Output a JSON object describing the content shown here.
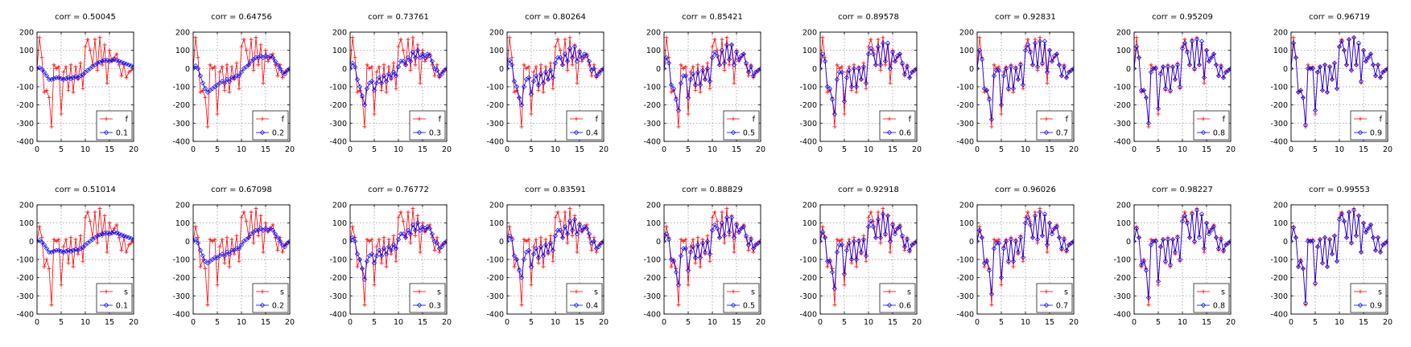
{
  "chart_data": {
    "type": "line",
    "layout": {
      "rows": 2,
      "cols": 9
    },
    "xlim": [
      0,
      20
    ],
    "ylim": [
      -400,
      200
    ],
    "xticks": [
      0,
      5,
      10,
      15,
      20
    ],
    "yticks": [
      -400,
      -300,
      -200,
      -100,
      0,
      100,
      200
    ],
    "grid": "dotted",
    "legend_location": "bottom-right",
    "colors": {
      "base_series": "#ff0000",
      "smoothed_series": "#0000ff"
    },
    "markers": {
      "base_series": "plus",
      "smoothed_series": "diamond"
    },
    "rows": [
      {
        "base_label": "f",
        "base_series": {
          "x": [
            0,
            0.5,
            1,
            1.5,
            2,
            2.5,
            3,
            3.5,
            4,
            4.5,
            5,
            5.5,
            6,
            6.5,
            7,
            7.5,
            8,
            8.5,
            9,
            9.5,
            10,
            10.5,
            11,
            11.5,
            12,
            12.5,
            13,
            13.5,
            14,
            14.5,
            15,
            15.5,
            16,
            16.5,
            17,
            17.5,
            18,
            18.5,
            19,
            19.5,
            20
          ],
          "y": [
            0,
            170,
            60,
            -130,
            -120,
            -160,
            -320,
            20,
            0,
            10,
            -250,
            -20,
            10,
            -120,
            20,
            -130,
            10,
            -60,
            30,
            -110,
            120,
            160,
            100,
            20,
            160,
            -10,
            170,
            20,
            130,
            -80,
            100,
            40,
            60,
            80,
            20,
            -40,
            20,
            -50,
            -20,
            -10,
            0
          ]
        },
        "panels": [
          {
            "title": "corr = 0.50045",
            "label": "0.1",
            "y": [
              0,
              5,
              -5,
              -20,
              -40,
              -60,
              -60,
              -55,
              -50,
              -50,
              -55,
              -60,
              -55,
              -50,
              -55,
              -50,
              -45,
              -50,
              -40,
              -35,
              -20,
              -10,
              0,
              10,
              20,
              30,
              35,
              40,
              45,
              45,
              40,
              45,
              50,
              45,
              40,
              35,
              30,
              25,
              20,
              15,
              10
            ]
          },
          {
            "title": "corr = 0.64756",
            "label": "0.2",
            "y": [
              0,
              15,
              0,
              -40,
              -80,
              -110,
              -130,
              -120,
              -110,
              -100,
              -90,
              -80,
              -70,
              -80,
              -60,
              -70,
              -50,
              -50,
              -40,
              -40,
              -20,
              0,
              10,
              20,
              40,
              50,
              60,
              60,
              70,
              60,
              70,
              60,
              70,
              60,
              40,
              20,
              0,
              -20,
              -30,
              -10,
              0
            ]
          },
          {
            "title": "corr = 0.73761",
            "label": "0.3",
            "y": [
              0,
              30,
              10,
              -60,
              -100,
              -150,
              -200,
              -110,
              -80,
              -70,
              -120,
              -80,
              -50,
              -80,
              -40,
              -70,
              -30,
              -50,
              -20,
              -40,
              10,
              40,
              40,
              20,
              60,
              40,
              90,
              60,
              100,
              60,
              80,
              60,
              80,
              70,
              40,
              0,
              -10,
              -40,
              -30,
              -10,
              0
            ]
          },
          {
            "title": "corr = 0.80264",
            "label": "0.4",
            "y": [
              0,
              45,
              20,
              -70,
              -100,
              -160,
              -200,
              -100,
              -60,
              -50,
              -140,
              -70,
              -40,
              -90,
              -30,
              -80,
              -20,
              -60,
              -10,
              -50,
              30,
              60,
              60,
              20,
              80,
              40,
              110,
              60,
              120,
              40,
              90,
              60,
              80,
              70,
              40,
              -10,
              0,
              -40,
              -30,
              -10,
              0
            ]
          },
          {
            "title": "corr = 0.85421",
            "label": "0.5",
            "y": [
              0,
              60,
              30,
              -90,
              -110,
              -170,
              -230,
              -80,
              -40,
              -40,
              -160,
              -60,
              -30,
              -90,
              -20,
              -90,
              -10,
              -60,
              0,
              -70,
              60,
              90,
              70,
              20,
              100,
              30,
              130,
              50,
              130,
              20,
              90,
              50,
              70,
              80,
              30,
              -20,
              10,
              -40,
              -20,
              -10,
              0
            ]
          },
          {
            "title": "corr = 0.89578",
            "label": "0.6",
            "y": [
              0,
              80,
              40,
              -100,
              -110,
              -170,
              -250,
              -60,
              -20,
              -20,
              -180,
              -50,
              -10,
              -100,
              0,
              -100,
              0,
              -60,
              10,
              -80,
              80,
              110,
              80,
              20,
              120,
              20,
              140,
              40,
              140,
              0,
              90,
              40,
              70,
              80,
              30,
              -30,
              10,
              -50,
              -20,
              -10,
              0
            ]
          },
          {
            "title": "corr = 0.92831",
            "label": "0.7",
            "y": [
              0,
              100,
              50,
              -110,
              -120,
              -170,
              -280,
              -40,
              -10,
              -10,
              -200,
              -40,
              0,
              -110,
              10,
              -110,
              0,
              -60,
              20,
              -90,
              100,
              130,
              90,
              20,
              140,
              10,
              150,
              30,
              150,
              -20,
              100,
              40,
              70,
              80,
              20,
              -40,
              10,
              -50,
              -20,
              -10,
              0
            ]
          },
          {
            "title": "corr = 0.95209",
            "label": "0.8",
            "y": [
              0,
              120,
              60,
              -120,
              -120,
              -160,
              -300,
              -20,
              0,
              0,
              -220,
              -30,
              10,
              -110,
              10,
              -120,
              10,
              -60,
              20,
              -100,
              110,
              140,
              90,
              20,
              150,
              0,
              160,
              20,
              150,
              -50,
              100,
              40,
              60,
              80,
              20,
              -40,
              10,
              -50,
              -20,
              -10,
              0
            ]
          },
          {
            "title": "corr = 0.96719",
            "label": "0.9",
            "y": [
              0,
              140,
              60,
              -130,
              -120,
              -160,
              -310,
              0,
              0,
              0,
              -230,
              -20,
              10,
              -120,
              20,
              -130,
              10,
              -60,
              30,
              -110,
              120,
              150,
              100,
              20,
              160,
              -10,
              170,
              20,
              140,
              -70,
              100,
              40,
              60,
              80,
              20,
              -40,
              20,
              -50,
              -20,
              -10,
              0
            ]
          }
        ]
      },
      {
        "base_label": "s",
        "base_series": {
          "x": [
            0,
            0.5,
            1,
            1.5,
            2,
            2.5,
            3,
            3.5,
            4,
            4.5,
            5,
            5.5,
            6,
            6.5,
            7,
            7.5,
            8,
            8.5,
            9,
            9.5,
            10,
            10.5,
            11,
            11.5,
            12,
            12.5,
            13,
            13.5,
            14,
            14.5,
            15,
            15.5,
            16,
            16.5,
            17,
            17.5,
            18,
            18.5,
            19,
            19.5,
            20
          ],
          "y": [
            0,
            80,
            20,
            -140,
            -100,
            -150,
            -350,
            10,
            0,
            10,
            -240,
            -30,
            10,
            -120,
            20,
            -140,
            10,
            -70,
            30,
            -110,
            130,
            160,
            110,
            20,
            160,
            -10,
            180,
            30,
            140,
            -60,
            100,
            50,
            70,
            90,
            20,
            -50,
            20,
            -60,
            -20,
            -10,
            0
          ]
        },
        "panels": [
          {
            "title": "corr = 0.51014",
            "label": "0.1",
            "y": [
              0,
              5,
              -5,
              -20,
              -40,
              -60,
              -60,
              -55,
              -50,
              -50,
              -55,
              -60,
              -55,
              -50,
              -55,
              -50,
              -45,
              -50,
              -40,
              -35,
              -20,
              -10,
              0,
              10,
              20,
              30,
              35,
              40,
              45,
              45,
              40,
              45,
              50,
              45,
              40,
              35,
              30,
              25,
              20,
              15,
              10
            ]
          },
          {
            "title": "corr = 0.67098",
            "label": "0.2",
            "y": [
              0,
              10,
              -10,
              -50,
              -80,
              -110,
              -120,
              -110,
              -100,
              -90,
              -90,
              -80,
              -70,
              -80,
              -60,
              -70,
              -50,
              -50,
              -40,
              -40,
              -20,
              0,
              10,
              20,
              40,
              50,
              60,
              60,
              70,
              60,
              70,
              60,
              70,
              60,
              40,
              20,
              0,
              -20,
              -30,
              -10,
              0
            ]
          },
          {
            "title": "corr = 0.76772",
            "label": "0.3",
            "y": [
              0,
              20,
              0,
              -70,
              -100,
              -150,
              -210,
              -110,
              -80,
              -70,
              -120,
              -80,
              -50,
              -80,
              -40,
              -70,
              -30,
              -50,
              -20,
              -40,
              10,
              40,
              40,
              20,
              60,
              40,
              90,
              60,
              100,
              60,
              80,
              60,
              80,
              70,
              40,
              0,
              -10,
              -40,
              -30,
              -10,
              0
            ]
          },
          {
            "title": "corr = 0.83591",
            "label": "0.4",
            "y": [
              0,
              30,
              10,
              -80,
              -100,
              -160,
              -200,
              -100,
              -60,
              -50,
              -140,
              -70,
              -40,
              -90,
              -30,
              -80,
              -20,
              -60,
              -10,
              -50,
              30,
              60,
              60,
              20,
              80,
              40,
              110,
              60,
              120,
              40,
              90,
              60,
              80,
              70,
              40,
              -10,
              0,
              -40,
              -30,
              -10,
              0
            ]
          },
          {
            "title": "corr = 0.88829",
            "label": "0.5",
            "y": [
              0,
              40,
              10,
              -100,
              -110,
              -170,
              -240,
              -80,
              -40,
              -40,
              -160,
              -60,
              -30,
              -90,
              -20,
              -90,
              -10,
              -60,
              0,
              -70,
              60,
              90,
              70,
              20,
              100,
              30,
              130,
              50,
              130,
              20,
              90,
              50,
              70,
              80,
              30,
              -20,
              10,
              -40,
              -20,
              -10,
              0
            ]
          },
          {
            "title": "corr = 0.92918",
            "label": "0.6",
            "y": [
              0,
              50,
              20,
              -110,
              -110,
              -170,
              -260,
              -60,
              -20,
              -20,
              -180,
              -50,
              -10,
              -100,
              0,
              -100,
              0,
              -60,
              10,
              -80,
              80,
              110,
              80,
              20,
              120,
              20,
              150,
              40,
              140,
              0,
              90,
              40,
              70,
              80,
              30,
              -30,
              10,
              -50,
              -20,
              -10,
              0
            ]
          },
          {
            "title": "corr = 0.96026",
            "label": "0.7",
            "y": [
              0,
              60,
              20,
              -120,
              -110,
              -160,
              -290,
              -40,
              -10,
              -10,
              -200,
              -40,
              0,
              -110,
              10,
              -110,
              0,
              -60,
              20,
              -90,
              100,
              130,
              90,
              20,
              140,
              10,
              160,
              30,
              150,
              -20,
              100,
              40,
              70,
              80,
              20,
              -40,
              10,
              -50,
              -20,
              -10,
              0
            ]
          },
          {
            "title": "corr = 0.98227",
            "label": "0.8",
            "y": [
              0,
              70,
              20,
              -130,
              -110,
              -160,
              -310,
              -20,
              0,
              0,
              -220,
              -30,
              10,
              -110,
              10,
              -130,
              10,
              -60,
              20,
              -100,
              110,
              140,
              100,
              20,
              150,
              0,
              170,
              20,
              150,
              -40,
              100,
              40,
              60,
              80,
              20,
              -40,
              10,
              -50,
              -20,
              -10,
              0
            ]
          },
          {
            "title": "corr = 0.99553",
            "label": "0.9",
            "y": [
              0,
              75,
              20,
              -140,
              -110,
              -150,
              -340,
              0,
              0,
              0,
              -230,
              -30,
              10,
              -120,
              20,
              -140,
              10,
              -70,
              30,
              -110,
              120,
              150,
              110,
              20,
              160,
              -10,
              170,
              30,
              140,
              -60,
              100,
              50,
              70,
              90,
              20,
              -50,
              20,
              -60,
              -20,
              -10,
              0
            ]
          }
        ]
      }
    ]
  }
}
